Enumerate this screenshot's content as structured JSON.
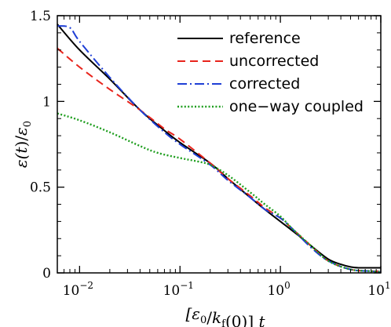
{
  "chart_data": {
    "type": "line",
    "xscale": "log",
    "xlim": [
      0.006,
      10
    ],
    "ylim": [
      0,
      1.5
    ],
    "xlabel": "[ε0/kf(0)] t",
    "ylabel": "ε(t)/ε0",
    "xtick_labels": [
      {
        "value": 0.01,
        "base": "10",
        "exp": "−2"
      },
      {
        "value": 0.1,
        "base": "10",
        "exp": "−1"
      },
      {
        "value": 1,
        "base": "10",
        "exp": "0"
      },
      {
        "value": 10,
        "base": "10",
        "exp": "1"
      }
    ],
    "yticks": [
      0,
      0.5,
      1,
      1.5
    ],
    "ytick_labels": [
      "0",
      "0.5",
      "1",
      "1.5"
    ],
    "legend_position": "top-right",
    "series": [
      {
        "name": "reference",
        "color": "#000000",
        "dash": "solid",
        "points": [
          [
            0.006,
            1.45
          ],
          [
            0.01,
            1.3
          ],
          [
            0.02,
            1.13
          ],
          [
            0.04,
            0.95
          ],
          [
            0.07,
            0.83
          ],
          [
            0.1,
            0.76
          ],
          [
            0.2,
            0.64
          ],
          [
            0.3,
            0.55
          ],
          [
            0.5,
            0.44
          ],
          [
            0.7,
            0.37
          ],
          [
            1,
            0.3
          ],
          [
            1.5,
            0.22
          ],
          [
            2,
            0.16
          ],
          [
            3,
            0.08
          ],
          [
            4,
            0.05
          ],
          [
            5,
            0.035
          ],
          [
            6,
            0.03
          ],
          [
            10,
            0.03
          ]
        ]
      },
      {
        "name": "uncorrected",
        "color": "#e8241c",
        "dash": "dashed",
        "points": [
          [
            0.006,
            1.31
          ],
          [
            0.01,
            1.2
          ],
          [
            0.02,
            1.07
          ],
          [
            0.04,
            0.95
          ],
          [
            0.07,
            0.84
          ],
          [
            0.1,
            0.78
          ],
          [
            0.2,
            0.64
          ],
          [
            0.3,
            0.55
          ],
          [
            0.5,
            0.45
          ],
          [
            0.7,
            0.38
          ],
          [
            1,
            0.32
          ],
          [
            1.3,
            0.26
          ],
          [
            2,
            0.16
          ],
          [
            3,
            0.07
          ],
          [
            5,
            0.02
          ],
          [
            8,
            0.01
          ],
          [
            10,
            0.01
          ]
        ]
      },
      {
        "name": "corrected",
        "color": "#1f3fd6",
        "dash": "dashdot",
        "points": [
          [
            0.006,
            1.44
          ],
          [
            0.008,
            1.43
          ],
          [
            0.01,
            1.35
          ],
          [
            0.02,
            1.14
          ],
          [
            0.04,
            0.95
          ],
          [
            0.07,
            0.82
          ],
          [
            0.1,
            0.75
          ],
          [
            0.2,
            0.63
          ],
          [
            0.3,
            0.54
          ],
          [
            0.5,
            0.44
          ],
          [
            0.7,
            0.37
          ],
          [
            1,
            0.32
          ],
          [
            1.3,
            0.26
          ],
          [
            2,
            0.15
          ],
          [
            3,
            0.07
          ],
          [
            5,
            0.02
          ],
          [
            8,
            0.01
          ],
          [
            10,
            0.005
          ]
        ]
      },
      {
        "name": "one−way coupled",
        "color": "#1e9e1e",
        "dash": "dotted",
        "points": [
          [
            0.006,
            0.93
          ],
          [
            0.01,
            0.89
          ],
          [
            0.02,
            0.82
          ],
          [
            0.04,
            0.74
          ],
          [
            0.06,
            0.7
          ],
          [
            0.1,
            0.67
          ],
          [
            0.15,
            0.65
          ],
          [
            0.2,
            0.63
          ],
          [
            0.3,
            0.57
          ],
          [
            0.5,
            0.47
          ],
          [
            0.7,
            0.4
          ],
          [
            1,
            0.33
          ],
          [
            1.3,
            0.26
          ],
          [
            2,
            0.16
          ],
          [
            3,
            0.07
          ],
          [
            5,
            0.02
          ],
          [
            8,
            0.01
          ],
          [
            10,
            0.005
          ]
        ]
      }
    ]
  }
}
